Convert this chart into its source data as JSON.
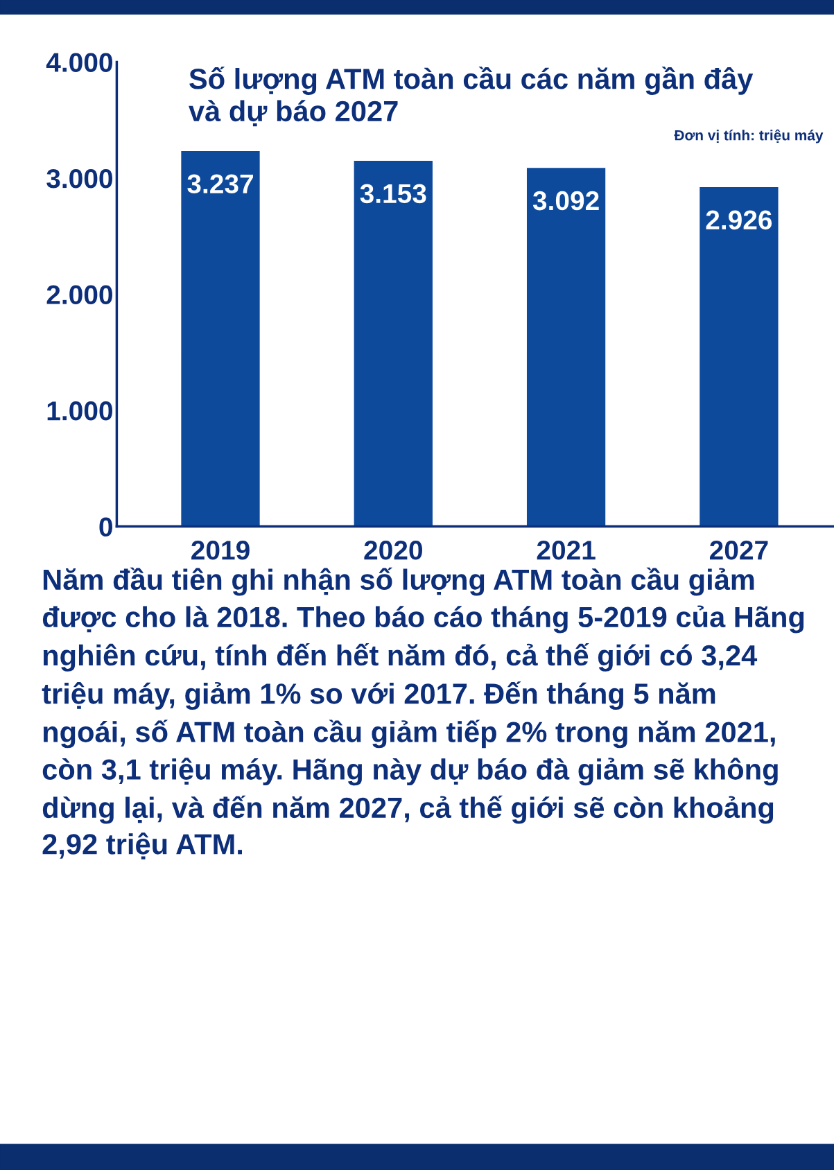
{
  "chart_data": {
    "type": "bar",
    "title": "Số lượng ATM toàn cầu các năm gần đây\nvà dự báo 2027",
    "categories": [
      "2019",
      "2020",
      "2021",
      "2027"
    ],
    "values": [
      3237,
      3153,
      3092,
      2926
    ],
    "value_labels": [
      "3.237",
      "3.153",
      "3.092",
      "2.926"
    ],
    "color": "#0e4a9c",
    "ylim": [
      0,
      4000
    ],
    "yticks": [
      {
        "value": 0,
        "label": "0"
      },
      {
        "value": 1000,
        "label": "1.000"
      },
      {
        "value": 2000,
        "label": "2.000"
      },
      {
        "value": 3000,
        "label": "3.000"
      },
      {
        "value": 4000,
        "label": "4.000"
      }
    ],
    "grid": false,
    "annotations": [
      "Đơn vị tính: triệu máy",
      "Năm đầu tiên ghi nhận số lượng ATM toàn cầu giảm được cho là 2018. Theo báo cáo tháng 5-2019 của Hãng nghiên cứu, tính đến hết năm đó, cả thế giới có 3,24 triệu máy, giảm 1% so với 2017. Đến tháng 5 năm ngoái, số ATM toàn cầu giảm tiếp 2% trong năm 2021, còn 3,1 triệu máy. Hãng này dự báo đà giảm sẽ không dừng lại, và đến năm 2027, cả thế giới sẽ còn khoảng 2,92 triệu ATM."
    ]
  }
}
